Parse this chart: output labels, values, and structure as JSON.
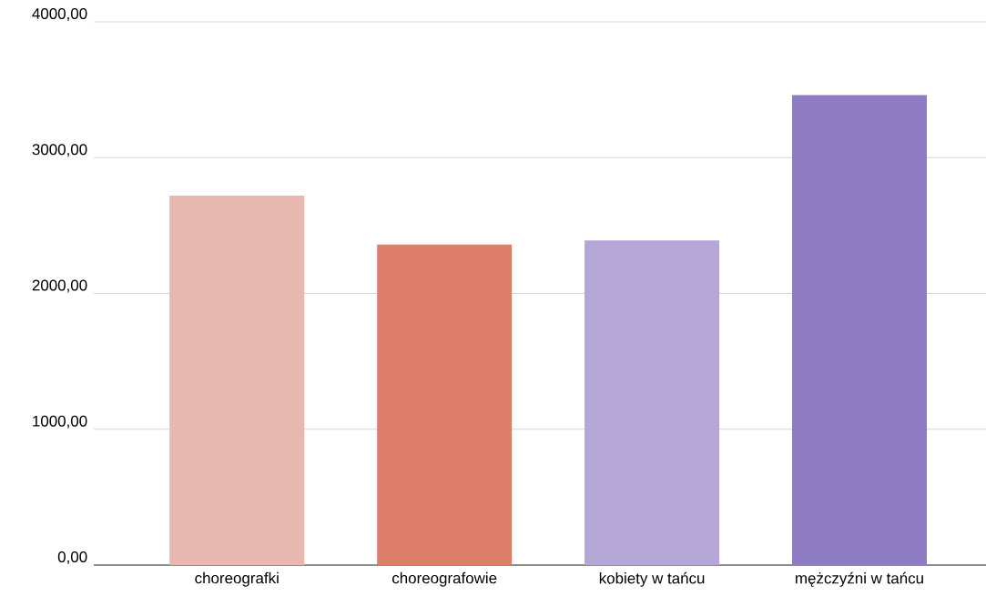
{
  "chart_data": {
    "type": "bar",
    "categories": [
      "choreografki",
      "choreografowie",
      "kobiety w tańcu",
      "mężczyźni w tańcu"
    ],
    "values": [
      2720,
      2360,
      2390,
      3460
    ],
    "colors": [
      "#e6b8af",
      "#dd7e6b",
      "#b4a7d6",
      "#8e7cc3"
    ],
    "ylim": [
      0,
      4000
    ],
    "yticks": [
      {
        "value": 0,
        "label": "0,00"
      },
      {
        "value": 1000,
        "label": "1000,00"
      },
      {
        "value": 2000,
        "label": "2000,00"
      },
      {
        "value": 3000,
        "label": "3000,00"
      },
      {
        "value": 4000,
        "label": "4000,00"
      }
    ],
    "grid": "y"
  }
}
